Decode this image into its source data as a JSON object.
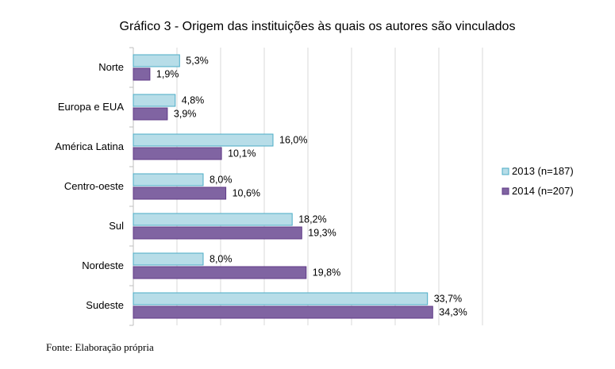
{
  "chart_data": {
    "type": "bar",
    "orientation": "horizontal",
    "title": "Gráfico 3 - Origem das instituições às quais os autores são vinculados",
    "categories": [
      "Norte",
      "Europa e EUA",
      "América Latina",
      "Centro-oeste",
      "Sul",
      "Nordeste",
      "Sudeste"
    ],
    "series": [
      {
        "name": "2013 (n=187)",
        "color": "#b7dde8",
        "values": [
          5.3,
          4.8,
          16.0,
          8.0,
          18.2,
          8.0,
          33.7
        ],
        "labels": [
          "5,3%",
          "4,8%",
          "16,0%",
          "8,0%",
          "18,2%",
          "8,0%",
          "33,7%"
        ]
      },
      {
        "name": "2014 (n=207)",
        "color": "#8064a2",
        "values": [
          1.9,
          3.9,
          10.1,
          10.6,
          19.3,
          19.8,
          34.3
        ],
        "labels": [
          "1,9%",
          "3,9%",
          "10,1%",
          "10,6%",
          "19,3%",
          "19,8%",
          "34,3%"
        ]
      }
    ],
    "xlim": [
      0,
      40
    ],
    "grid": true,
    "legend_position": "right"
  },
  "source_note": "Fonte: Elaboração própria"
}
